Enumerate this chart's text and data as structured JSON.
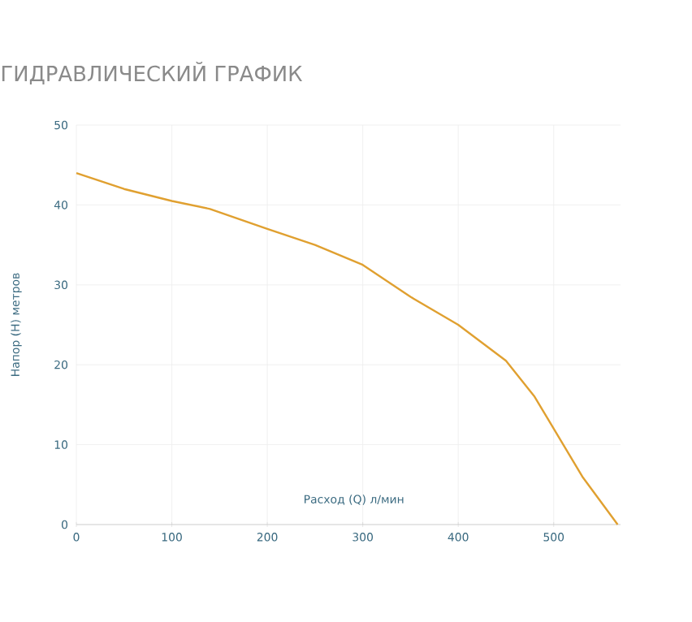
{
  "chart_data": {
    "type": "line",
    "title": "ГИДРАВЛИЧЕСКИЙ ГРАФИК",
    "xlabel": "Расход (Q) л/мин",
    "ylabel": "Напор (H) метров",
    "x": [
      0,
      50,
      100,
      140,
      200,
      250,
      300,
      350,
      400,
      450,
      480,
      500,
      530,
      567
    ],
    "series": [
      {
        "color": "#e0a030",
        "values": [
          44,
          42,
          40.5,
          39.5,
          37,
          35,
          32.5,
          28.5,
          25,
          20.5,
          16,
          12,
          6,
          0
        ]
      }
    ],
    "xlim": [
      0,
      570
    ],
    "ylim": [
      0,
      50
    ],
    "xticks": [
      0,
      100,
      200,
      300,
      400,
      500
    ],
    "yticks": [
      0,
      10,
      20,
      30,
      40,
      50
    ],
    "grid": true,
    "marker": "none",
    "line_style": "solid"
  }
}
